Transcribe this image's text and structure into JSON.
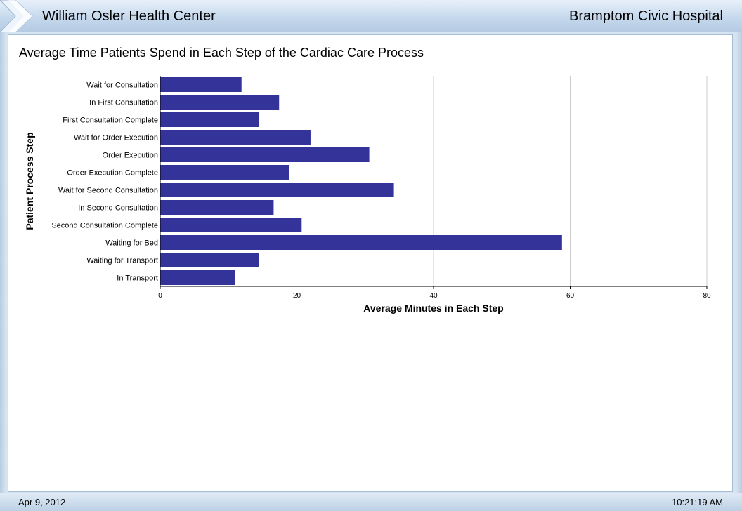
{
  "header": {
    "left_title": "William Osler Health Center",
    "right_title": "Bramptom Civic Hospital"
  },
  "footer": {
    "date": "Apr 9, 2012",
    "time": "10:21:19 AM"
  },
  "colors": {
    "bar": "#333399",
    "grid": "#cccccc"
  },
  "chart_data": {
    "type": "bar",
    "orientation": "horizontal",
    "title": "Average Time Patients Spend in Each Step of the Cardiac Care Process",
    "xlabel": "Average Minutes in Each Step",
    "ylabel": "Patient Process Step",
    "xlim": [
      0,
      80
    ],
    "xticks": [
      0,
      20,
      40,
      60,
      80
    ],
    "grid": true,
    "categories": [
      "Wait for Consultation",
      "In First Consultation",
      "First Consultation Complete",
      "Wait for Order Execution",
      "Order Execution",
      "Order Execution Complete",
      "Wait for Second Consultation",
      "In Second Consultation",
      "Second Consultation Complete",
      "Waiting for Bed",
      "Waiting for Transport",
      "In Transport"
    ],
    "values": [
      11.9,
      17.4,
      14.5,
      22.0,
      30.6,
      18.9,
      34.2,
      16.6,
      20.7,
      58.8,
      14.4,
      11.0
    ]
  }
}
